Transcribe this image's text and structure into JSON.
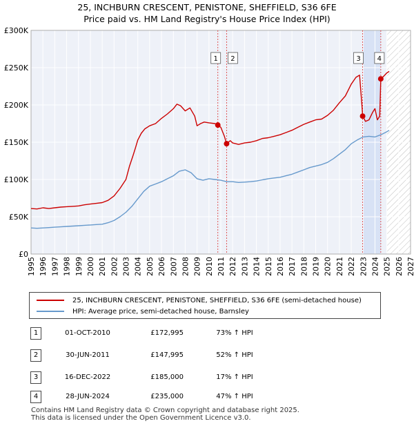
{
  "title_line1": "25, INCHBURN CRESCENT, PENISTONE, SHEFFIELD, S36 6FE",
  "title_line2": "Price paid vs. HM Land Registry's House Price Index (HPI)",
  "chart_data": {
    "type": "line",
    "xlim": [
      1995,
      2027
    ],
    "ylim": [
      0,
      300000
    ],
    "xticks": [
      1995,
      1996,
      1997,
      1998,
      1999,
      2000,
      2001,
      2002,
      2003,
      2004,
      2005,
      2006,
      2007,
      2008,
      2009,
      2010,
      2011,
      2012,
      2013,
      2014,
      2015,
      2016,
      2017,
      2018,
      2019,
      2020,
      2021,
      2022,
      2023,
      2024,
      2025,
      2026,
      2027
    ],
    "yticks": [
      0,
      50000,
      100000,
      150000,
      200000,
      250000,
      300000
    ],
    "ytick_labels": [
      "£0",
      "£50K",
      "£100K",
      "£150K",
      "£200K",
      "£250K",
      "£300K"
    ],
    "grid": true,
    "shaded_region": [
      2022.96,
      2024.49
    ],
    "future_hatch_start": 2025.0,
    "series": [
      {
        "name": "25, INCHBURN CRESCENT, PENISTONE, SHEFFIELD, S36 6FE (semi-detached house)",
        "color": "#cc0000",
        "points": [
          [
            1995.0,
            61000
          ],
          [
            1995.5,
            60500
          ],
          [
            1996.0,
            62000
          ],
          [
            1996.5,
            61000
          ],
          [
            1997.0,
            62000
          ],
          [
            1997.5,
            63000
          ],
          [
            1998.0,
            63500
          ],
          [
            1998.5,
            64000
          ],
          [
            1999.0,
            64500
          ],
          [
            1999.5,
            66000
          ],
          [
            2000.0,
            67000
          ],
          [
            2000.5,
            68000
          ],
          [
            2001.0,
            69000
          ],
          [
            2001.5,
            72000
          ],
          [
            2002.0,
            78000
          ],
          [
            2002.5,
            88000
          ],
          [
            2003.0,
            100000
          ],
          [
            2003.3,
            118000
          ],
          [
            2003.6,
            132000
          ],
          [
            2003.8,
            142000
          ],
          [
            2004.0,
            153000
          ],
          [
            2004.3,
            162000
          ],
          [
            2004.6,
            168000
          ],
          [
            2005.0,
            172000
          ],
          [
            2005.5,
            175000
          ],
          [
            2006.0,
            182000
          ],
          [
            2006.5,
            188000
          ],
          [
            2007.0,
            195000
          ],
          [
            2007.3,
            201000
          ],
          [
            2007.6,
            199000
          ],
          [
            2008.0,
            192000
          ],
          [
            2008.4,
            196000
          ],
          [
            2008.8,
            185000
          ],
          [
            2009.0,
            172000
          ],
          [
            2009.3,
            175000
          ],
          [
            2009.6,
            177000
          ],
          [
            2010.0,
            176000
          ],
          [
            2010.5,
            175000
          ],
          [
            2010.75,
            172995
          ],
          [
            2011.0,
            170000
          ],
          [
            2011.3,
            158000
          ],
          [
            2011.49,
            147995
          ],
          [
            2011.8,
            152000
          ],
          [
            2012.0,
            149000
          ],
          [
            2012.5,
            147000
          ],
          [
            2013.0,
            149000
          ],
          [
            2013.5,
            150000
          ],
          [
            2014.0,
            152000
          ],
          [
            2014.5,
            155000
          ],
          [
            2015.0,
            156000
          ],
          [
            2015.5,
            158000
          ],
          [
            2016.0,
            160000
          ],
          [
            2016.5,
            163000
          ],
          [
            2017.0,
            166000
          ],
          [
            2017.5,
            170000
          ],
          [
            2018.0,
            174000
          ],
          [
            2018.5,
            177000
          ],
          [
            2019.0,
            180000
          ],
          [
            2019.5,
            181000
          ],
          [
            2020.0,
            186000
          ],
          [
            2020.5,
            193000
          ],
          [
            2021.0,
            203000
          ],
          [
            2021.5,
            212000
          ],
          [
            2022.0,
            228000
          ],
          [
            2022.4,
            237000
          ],
          [
            2022.7,
            240000
          ],
          [
            2022.9,
            200000
          ],
          [
            2022.96,
            185000
          ],
          [
            2023.2,
            178000
          ],
          [
            2023.5,
            180000
          ],
          [
            2023.8,
            190000
          ],
          [
            2024.0,
            195000
          ],
          [
            2024.2,
            180000
          ],
          [
            2024.4,
            185000
          ],
          [
            2024.49,
            235000
          ],
          [
            2024.7,
            238000
          ],
          [
            2025.0,
            243000
          ],
          [
            2025.2,
            245000
          ]
        ]
      },
      {
        "name": "HPI: Average price, semi-detached house, Barnsley",
        "color": "#6699cc",
        "points": [
          [
            1995.0,
            35000
          ],
          [
            1995.5,
            34500
          ],
          [
            1996.0,
            35000
          ],
          [
            1996.5,
            35500
          ],
          [
            1997.0,
            36000
          ],
          [
            1997.5,
            36500
          ],
          [
            1998.0,
            37000
          ],
          [
            1998.5,
            37500
          ],
          [
            1999.0,
            38000
          ],
          [
            1999.5,
            38500
          ],
          [
            2000.0,
            39000
          ],
          [
            2000.5,
            39500
          ],
          [
            2001.0,
            40000
          ],
          [
            2001.5,
            42000
          ],
          [
            2002.0,
            45000
          ],
          [
            2002.5,
            50000
          ],
          [
            2003.0,
            56000
          ],
          [
            2003.5,
            64000
          ],
          [
            2004.0,
            74000
          ],
          [
            2004.5,
            84000
          ],
          [
            2005.0,
            91000
          ],
          [
            2005.5,
            94000
          ],
          [
            2006.0,
            97000
          ],
          [
            2006.5,
            101000
          ],
          [
            2007.0,
            105000
          ],
          [
            2007.5,
            111000
          ],
          [
            2008.0,
            113000
          ],
          [
            2008.5,
            109000
          ],
          [
            2009.0,
            101000
          ],
          [
            2009.5,
            99000
          ],
          [
            2010.0,
            101000
          ],
          [
            2010.5,
            100000
          ],
          [
            2011.0,
            99000
          ],
          [
            2011.5,
            97000
          ],
          [
            2012.0,
            97000
          ],
          [
            2012.5,
            96000
          ],
          [
            2013.0,
            96500
          ],
          [
            2013.5,
            97000
          ],
          [
            2014.0,
            98000
          ],
          [
            2014.5,
            99500
          ],
          [
            2015.0,
            101000
          ],
          [
            2015.5,
            102000
          ],
          [
            2016.0,
            103000
          ],
          [
            2016.5,
            105000
          ],
          [
            2017.0,
            107000
          ],
          [
            2017.5,
            110000
          ],
          [
            2018.0,
            113000
          ],
          [
            2018.5,
            116000
          ],
          [
            2019.0,
            118000
          ],
          [
            2019.5,
            120000
          ],
          [
            2020.0,
            123000
          ],
          [
            2020.5,
            128000
          ],
          [
            2021.0,
            134000
          ],
          [
            2021.5,
            140000
          ],
          [
            2022.0,
            148000
          ],
          [
            2022.5,
            153000
          ],
          [
            2023.0,
            157000
          ],
          [
            2023.5,
            158000
          ],
          [
            2024.0,
            157000
          ],
          [
            2024.5,
            160000
          ],
          [
            2025.0,
            164000
          ],
          [
            2025.2,
            166000
          ]
        ]
      }
    ],
    "sales": [
      {
        "label": "1",
        "x": 2010.75,
        "y": 172995
      },
      {
        "label": "2",
        "x": 2011.49,
        "y": 147995
      },
      {
        "label": "3",
        "x": 2022.96,
        "y": 185000
      },
      {
        "label": "4",
        "x": 2024.49,
        "y": 235000
      }
    ]
  },
  "legend": {
    "series1": "25, INCHBURN CRESCENT, PENISTONE, SHEFFIELD, S36 6FE (semi-detached house)",
    "series2": "HPI: Average price, semi-detached house, Barnsley"
  },
  "transactions": [
    {
      "label": "1",
      "date": "01-OCT-2010",
      "price": "£172,995",
      "hpi": "73% ↑ HPI"
    },
    {
      "label": "2",
      "date": "30-JUN-2011",
      "price": "£147,995",
      "hpi": "52% ↑ HPI"
    },
    {
      "label": "3",
      "date": "16-DEC-2022",
      "price": "£185,000",
      "hpi": "17% ↑ HPI"
    },
    {
      "label": "4",
      "date": "28-JUN-2024",
      "price": "£235,000",
      "hpi": "47% ↑ HPI"
    }
  ],
  "footer_line1": "Contains HM Land Registry data © Crown copyright and database right 2025.",
  "footer_line2": "This data is licensed under the Open Government Licence v3.0."
}
